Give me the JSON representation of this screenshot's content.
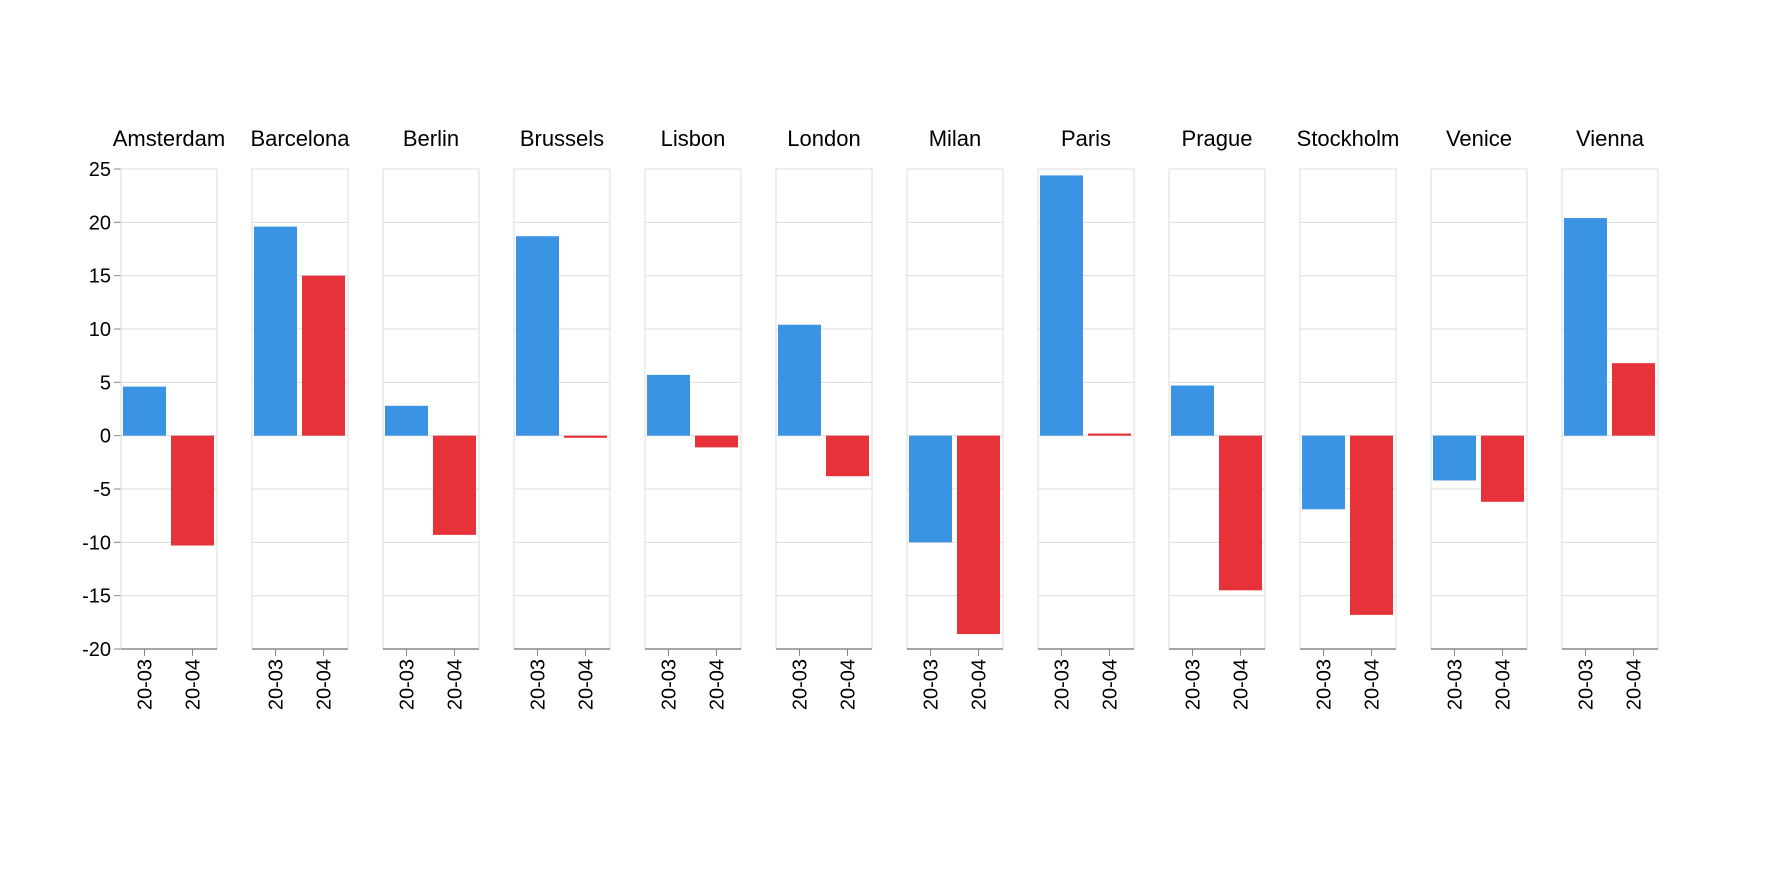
{
  "chart_data": {
    "type": "bar",
    "title": "",
    "xlabel": "",
    "ylabel": "",
    "ylim": [
      -20,
      25
    ],
    "y_ticks": [
      25,
      20,
      15,
      10,
      5,
      0,
      -5,
      -10,
      -15,
      -20
    ],
    "y_tick_labels": [
      "25",
      "20",
      "15",
      "10",
      "5",
      "0",
      "-5",
      "-10",
      "-15",
      "-20"
    ],
    "grid": true,
    "legend": "none",
    "categories": [
      "20-03",
      "20-04"
    ],
    "bar_colors": [
      "#3b93e4",
      "#e8323a"
    ],
    "facets": [
      {
        "name": "Amsterdam",
        "values": [
          4.6,
          -10.3
        ]
      },
      {
        "name": "Barcelona",
        "values": [
          19.6,
          15.0
        ]
      },
      {
        "name": "Berlin",
        "values": [
          2.8,
          -9.3
        ]
      },
      {
        "name": "Brussels",
        "values": [
          18.7,
          -0.2
        ]
      },
      {
        "name": "Lisbon",
        "values": [
          5.7,
          -1.1
        ]
      },
      {
        "name": "London",
        "values": [
          10.4,
          -3.8
        ]
      },
      {
        "name": "Milan",
        "values": [
          -10.0,
          -18.6
        ]
      },
      {
        "name": "Paris",
        "values": [
          24.4,
          0.2
        ]
      },
      {
        "name": "Prague",
        "values": [
          4.7,
          -14.5
        ]
      },
      {
        "name": "Stockholm",
        "values": [
          -6.9,
          -16.8
        ]
      },
      {
        "name": "Venice",
        "values": [
          -4.2,
          -6.2
        ]
      },
      {
        "name": "Vienna",
        "values": [
          20.4,
          6.8
        ]
      }
    ]
  }
}
